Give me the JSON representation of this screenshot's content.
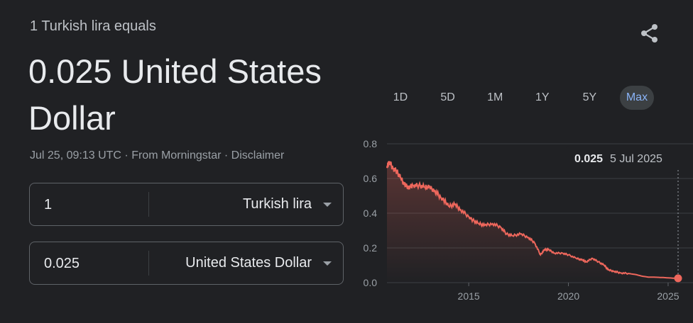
{
  "header": {
    "subtitle": "1 Turkish lira equals",
    "result": "0.025 United States Dollar"
  },
  "meta": {
    "timestamp": "Jul 25, 09:13 UTC",
    "source": "From Morningstar",
    "disclaimer": "Disclaimer",
    "separator": "·"
  },
  "converter": {
    "from": {
      "amount": "1",
      "currency": "Turkish lira"
    },
    "to": {
      "amount": "0.025",
      "currency": "United States Dollar"
    }
  },
  "ranges": [
    "1D",
    "5D",
    "1M",
    "1Y",
    "5Y",
    "Max"
  ],
  "active_range": "Max",
  "tooltip": {
    "value": "0.025",
    "date": "5 Jul 2025"
  },
  "colors": {
    "line": "#ee675c",
    "accent": "#8ab4f8",
    "background": "#202124"
  },
  "icons": {
    "share": "share-icon",
    "dropdown": "caret-down-icon"
  },
  "chart_data": {
    "type": "area",
    "x_unit": "year",
    "x": [
      2010.9,
      2011.0,
      2011.2,
      2011.4,
      2011.6,
      2011.8,
      2012.0,
      2012.2,
      2012.5,
      2012.8,
      2013.0,
      2013.3,
      2013.6,
      2013.8,
      2014.0,
      2014.3,
      2014.6,
      2015.0,
      2015.2,
      2015.5,
      2015.8,
      2016.2,
      2016.6,
      2016.9,
      2017.2,
      2017.6,
      2018.0,
      2018.3,
      2018.6,
      2018.8,
      2019.0,
      2019.3,
      2019.7,
      2020.0,
      2020.4,
      2020.7,
      2020.9,
      2021.2,
      2021.5,
      2021.8,
      2022.0,
      2022.3,
      2022.6,
      2023.0,
      2023.4,
      2023.7,
      2024.0,
      2024.4,
      2024.8,
      2025.2,
      2025.5
    ],
    "y": [
      0.66,
      0.7,
      0.66,
      0.64,
      0.6,
      0.56,
      0.55,
      0.56,
      0.56,
      0.55,
      0.55,
      0.53,
      0.49,
      0.47,
      0.44,
      0.45,
      0.42,
      0.38,
      0.36,
      0.34,
      0.33,
      0.34,
      0.32,
      0.28,
      0.27,
      0.28,
      0.26,
      0.23,
      0.16,
      0.19,
      0.19,
      0.17,
      0.17,
      0.16,
      0.14,
      0.13,
      0.12,
      0.14,
      0.12,
      0.1,
      0.073,
      0.065,
      0.056,
      0.053,
      0.046,
      0.037,
      0.032,
      0.031,
      0.029,
      0.026,
      0.025
    ],
    "y_ticks": [
      "0.8",
      "0.6",
      "0.4",
      "0.2",
      "0.0"
    ],
    "x_ticks": [
      "2015",
      "2020",
      "2025"
    ],
    "ylim": [
      0,
      0.8
    ],
    "xlim": [
      2010.9,
      2025.5
    ],
    "grid": true
  }
}
